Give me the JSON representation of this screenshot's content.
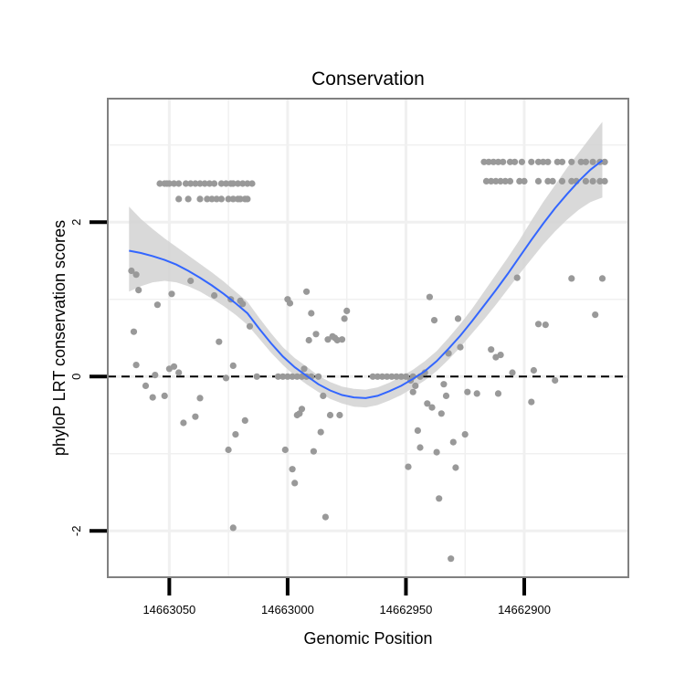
{
  "chart_data": {
    "type": "scatter",
    "title": "Conservation",
    "xlabel": "Genomic Position",
    "ylabel": "phyloP LRT conservation scores",
    "x_reversed": true,
    "xlim": [
      14663076,
      14662856
    ],
    "ylim": [
      -2.6,
      3.6
    ],
    "xticks": [
      14663050,
      14663000,
      14662950,
      14662900
    ],
    "yticks": [
      -2,
      0,
      2
    ],
    "grid": true,
    "reference_line": {
      "y": 0,
      "style": "dashed"
    },
    "colors": {
      "points": "#999999",
      "smooth": "#3366ff",
      "band": "#d2d2d2",
      "panel_border": "#808080",
      "grid": "#f0f0f0"
    },
    "points": [
      [
        14663054,
        2.5
      ],
      [
        14663052,
        2.5
      ],
      [
        14663051,
        2.5
      ],
      [
        14663050,
        2.5
      ],
      [
        14663048,
        2.5
      ],
      [
        14663046,
        2.5
      ],
      [
        14663043,
        2.5
      ],
      [
        14663041,
        2.5
      ],
      [
        14663039,
        2.5
      ],
      [
        14663037,
        2.5
      ],
      [
        14663035,
        2.5
      ],
      [
        14663033,
        2.5
      ],
      [
        14663031,
        2.5
      ],
      [
        14663028,
        2.5
      ],
      [
        14663026,
        2.5
      ],
      [
        14663024,
        2.5
      ],
      [
        14663023,
        2.5
      ],
      [
        14663021,
        2.5
      ],
      [
        14663019,
        2.5
      ],
      [
        14663017,
        2.5
      ],
      [
        14663015,
        2.5
      ],
      [
        14663046,
        2.3
      ],
      [
        14663042,
        2.3
      ],
      [
        14663037,
        2.3
      ],
      [
        14663034,
        2.3
      ],
      [
        14663032,
        2.3
      ],
      [
        14663030,
        2.3
      ],
      [
        14663028,
        2.3
      ],
      [
        14663025,
        2.3
      ],
      [
        14663023,
        2.3
      ],
      [
        14663021,
        2.3
      ],
      [
        14663020,
        2.3
      ],
      [
        14663018,
        2.3
      ],
      [
        14663017,
        2.3
      ],
      [
        14662917,
        2.78
      ],
      [
        14662915,
        2.78
      ],
      [
        14662913,
        2.78
      ],
      [
        14662911,
        2.78
      ],
      [
        14662909,
        2.78
      ],
      [
        14662906,
        2.78
      ],
      [
        14662904,
        2.78
      ],
      [
        14662901,
        2.78
      ],
      [
        14662897,
        2.78
      ],
      [
        14662894,
        2.78
      ],
      [
        14662892,
        2.78
      ],
      [
        14662890,
        2.78
      ],
      [
        14662886,
        2.78
      ],
      [
        14662884,
        2.78
      ],
      [
        14662880,
        2.78
      ],
      [
        14662876,
        2.78
      ],
      [
        14662874,
        2.78
      ],
      [
        14662871,
        2.78
      ],
      [
        14662868,
        2.78
      ],
      [
        14662866,
        2.78
      ],
      [
        14662916,
        2.53
      ],
      [
        14662914,
        2.53
      ],
      [
        14662912,
        2.53
      ],
      [
        14662910,
        2.53
      ],
      [
        14662908,
        2.53
      ],
      [
        14662906,
        2.53
      ],
      [
        14662902,
        2.53
      ],
      [
        14662900,
        2.53
      ],
      [
        14662894,
        2.53
      ],
      [
        14662890,
        2.53
      ],
      [
        14662888,
        2.53
      ],
      [
        14662884,
        2.53
      ],
      [
        14662880,
        2.53
      ],
      [
        14662878,
        2.53
      ],
      [
        14662874,
        2.53
      ],
      [
        14662871,
        2.53
      ],
      [
        14662868,
        2.53
      ],
      [
        14662866,
        2.53
      ],
      [
        14663004,
        0
      ],
      [
        14663002,
        0
      ],
      [
        14663000,
        0
      ],
      [
        14662998,
        0
      ],
      [
        14662996,
        0
      ],
      [
        14662994,
        0
      ],
      [
        14662992,
        0
      ],
      [
        14662990,
        0
      ],
      [
        14662964,
        0
      ],
      [
        14662962,
        0
      ],
      [
        14662960,
        0
      ],
      [
        14662958,
        0
      ],
      [
        14662956,
        0
      ],
      [
        14662954,
        0
      ],
      [
        14662952,
        0
      ],
      [
        14662950,
        0
      ],
      [
        14662947,
        0
      ],
      [
        14662944,
        0
      ],
      [
        14663066,
        1.37
      ],
      [
        14663064,
        1.32
      ],
      [
        14663065,
        0.58
      ],
      [
        14663063,
        1.12
      ],
      [
        14663064,
        0.15
      ],
      [
        14663060,
        -0.12
      ],
      [
        14663057,
        -0.27
      ],
      [
        14663056,
        0.02
      ],
      [
        14663055,
        0.93
      ],
      [
        14663052,
        -0.25
      ],
      [
        14663050,
        0.1
      ],
      [
        14663049,
        1.07
      ],
      [
        14663048,
        0.13
      ],
      [
        14663046,
        0.05
      ],
      [
        14663044,
        -0.6
      ],
      [
        14663041,
        1.24
      ],
      [
        14663039,
        -0.52
      ],
      [
        14663037,
        -0.28
      ],
      [
        14663031,
        1.05
      ],
      [
        14663029,
        0.45
      ],
      [
        14663026,
        -0.02
      ],
      [
        14663025,
        -0.95
      ],
      [
        14663024,
        1.0
      ],
      [
        14663023,
        0.14
      ],
      [
        14663022,
        -0.75
      ],
      [
        14663020,
        0.98
      ],
      [
        14663019,
        0.94
      ],
      [
        14663018,
        -0.57
      ],
      [
        14663023,
        -1.96
      ],
      [
        14663016,
        0.65
      ],
      [
        14663013,
        0.0
      ],
      [
        14663001,
        -0.95
      ],
      [
        14663000,
        1.0
      ],
      [
        14662999,
        0.95
      ],
      [
        14662998,
        -1.2
      ],
      [
        14662997,
        -1.38
      ],
      [
        14662996,
        -0.5
      ],
      [
        14662995,
        -0.48
      ],
      [
        14662994,
        -0.42
      ],
      [
        14662993,
        0.1
      ],
      [
        14662992,
        1.1
      ],
      [
        14662991,
        0.47
      ],
      [
        14662990,
        0.82
      ],
      [
        14662989,
        -0.97
      ],
      [
        14662988,
        0.55
      ],
      [
        14662987,
        0.0
      ],
      [
        14662986,
        -0.72
      ],
      [
        14662985,
        -0.25
      ],
      [
        14662984,
        -1.82
      ],
      [
        14662983,
        0.48
      ],
      [
        14662982,
        -0.5
      ],
      [
        14662981,
        0.52
      ],
      [
        14662980,
        0.5
      ],
      [
        14662979,
        0.47
      ],
      [
        14662978,
        -0.5
      ],
      [
        14662977,
        0.48
      ],
      [
        14662976,
        0.75
      ],
      [
        14662975,
        0.85
      ],
      [
        14662949,
        -1.17
      ],
      [
        14662948,
        -0.05
      ],
      [
        14662947,
        -0.2
      ],
      [
        14662946,
        -0.12
      ],
      [
        14662945,
        -0.7
      ],
      [
        14662944,
        -0.92
      ],
      [
        14662942,
        0.05
      ],
      [
        14662941,
        -0.35
      ],
      [
        14662940,
        1.03
      ],
      [
        14662939,
        -0.4
      ],
      [
        14662938,
        0.73
      ],
      [
        14662937,
        -0.98
      ],
      [
        14662936,
        -1.58
      ],
      [
        14662935,
        -0.48
      ],
      [
        14662934,
        -0.1
      ],
      [
        14662933,
        -0.25
      ],
      [
        14662932,
        0.3
      ],
      [
        14662931,
        -2.36
      ],
      [
        14662930,
        -0.85
      ],
      [
        14662929,
        -1.18
      ],
      [
        14662928,
        0.75
      ],
      [
        14662927,
        0.38
      ],
      [
        14662925,
        -0.75
      ],
      [
        14662924,
        -0.2
      ],
      [
        14662920,
        -0.22
      ],
      [
        14662914,
        0.35
      ],
      [
        14662910,
        0.28
      ],
      [
        14662912,
        0.25
      ],
      [
        14662911,
        -0.22
      ],
      [
        14662903,
        1.28
      ],
      [
        14662905,
        0.05
      ],
      [
        14662897,
        -0.33
      ],
      [
        14662896,
        0.08
      ],
      [
        14662894,
        0.68
      ],
      [
        14662891,
        0.67
      ],
      [
        14662887,
        -0.05
      ],
      [
        14662880,
        1.27
      ],
      [
        14662870,
        0.8
      ],
      [
        14662867,
        1.27
      ]
    ],
    "smooth": {
      "method": "loess",
      "x": [
        14663067,
        14663062,
        14663057,
        14663052,
        14663047,
        14663042,
        14663037,
        14663032,
        14663027,
        14663022,
        14663017,
        14663012,
        14663007,
        14663002,
        14662997,
        14662992,
        14662987,
        14662982,
        14662977,
        14662972,
        14662967,
        14662962,
        14662957,
        14662952,
        14662947,
        14662942,
        14662937,
        14662932,
        14662927,
        14662922,
        14662917,
        14662912,
        14662907,
        14662902,
        14662897,
        14662892,
        14662887,
        14662882,
        14662877,
        14662872,
        14662867
      ],
      "y": [
        1.63,
        1.6,
        1.56,
        1.51,
        1.45,
        1.37,
        1.28,
        1.18,
        1.07,
        0.95,
        0.82,
        0.62,
        0.43,
        0.26,
        0.12,
        0.01,
        -0.1,
        -0.18,
        -0.24,
        -0.27,
        -0.28,
        -0.25,
        -0.19,
        -0.12,
        -0.03,
        0.07,
        0.2,
        0.36,
        0.53,
        0.72,
        0.92,
        1.12,
        1.33,
        1.55,
        1.77,
        1.98,
        2.18,
        2.36,
        2.53,
        2.68,
        2.8
      ],
      "lower": [
        1.1,
        1.17,
        1.22,
        1.24,
        1.22,
        1.17,
        1.1,
        1.01,
        0.91,
        0.8,
        0.67,
        0.49,
        0.31,
        0.15,
        0.01,
        -0.1,
        -0.2,
        -0.29,
        -0.35,
        -0.39,
        -0.4,
        -0.37,
        -0.31,
        -0.24,
        -0.15,
        -0.05,
        0.07,
        0.22,
        0.38,
        0.56,
        0.74,
        0.93,
        1.13,
        1.33,
        1.52,
        1.71,
        1.88,
        2.03,
        2.16,
        2.26,
        2.32
      ],
      "upper": [
        2.2,
        2.04,
        1.91,
        1.79,
        1.68,
        1.57,
        1.46,
        1.35,
        1.23,
        1.1,
        0.97,
        0.76,
        0.56,
        0.38,
        0.24,
        0.13,
        0.01,
        -0.07,
        -0.13,
        -0.16,
        -0.17,
        -0.14,
        -0.08,
        0.0,
        0.09,
        0.2,
        0.33,
        0.5,
        0.68,
        0.88,
        1.1,
        1.32,
        1.54,
        1.77,
        2.02,
        2.26,
        2.48,
        2.7,
        2.9,
        3.1,
        3.3
      ]
    }
  }
}
